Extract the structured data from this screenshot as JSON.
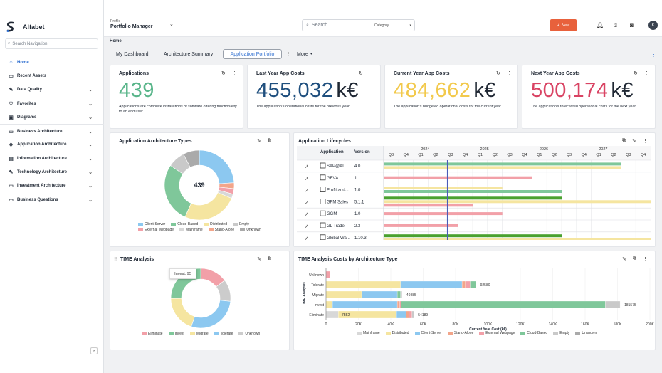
{
  "app": {
    "logo_text": "Alfabet"
  },
  "sidebar": {
    "search_placeholder": "Search Navigation",
    "items": [
      {
        "label": "Home",
        "icon": "home-icon",
        "glyph": "⌂",
        "active": true,
        "expandable": false
      },
      {
        "label": "Recent Assets",
        "icon": "recent-icon",
        "glyph": "▭",
        "active": false,
        "expandable": false
      },
      {
        "label": "Data Quality",
        "icon": "data-quality-icon",
        "glyph": "✎",
        "active": false,
        "expandable": true
      },
      {
        "label": "Favorites",
        "icon": "heart-icon",
        "glyph": "♡",
        "active": false,
        "expandable": true
      },
      {
        "label": "Diagrams",
        "icon": "diagram-icon",
        "glyph": "▣",
        "active": false,
        "expandable": true
      },
      {
        "label": "Business Architecture",
        "icon": "business-icon",
        "glyph": "▭",
        "active": false,
        "expandable": true
      },
      {
        "label": "Application Architecture",
        "icon": "application-icon",
        "glyph": "◈",
        "active": false,
        "expandable": true
      },
      {
        "label": "Information Architecture",
        "icon": "information-icon",
        "glyph": "▤",
        "active": false,
        "expandable": true
      },
      {
        "label": "Technology Architecture",
        "icon": "technology-icon",
        "glyph": "✎",
        "active": false,
        "expandable": true
      },
      {
        "label": "Investment Architecture",
        "icon": "investment-icon",
        "glyph": "▭",
        "active": false,
        "expandable": true
      },
      {
        "label": "Business Questions",
        "icon": "questions-icon",
        "glyph": "▭",
        "active": false,
        "expandable": true
      }
    ]
  },
  "header": {
    "profile_caption": "Profile",
    "profile_name": "Portfolio Manager",
    "search_placeholder": "Search",
    "search_category": "Category",
    "new_label": "New",
    "avatar_initial": "K"
  },
  "breadcrumb": "Home",
  "tabs": [
    {
      "label": "My Dashboard",
      "active": false
    },
    {
      "label": "Architecture Summary",
      "active": false
    },
    {
      "label": "Application Portfolio",
      "active": true
    },
    {
      "label": "More",
      "active": false
    }
  ],
  "kpis": [
    {
      "title": "Applications",
      "value": "439",
      "unit": "",
      "color": "#59b58a",
      "desc": "Applications are complete installations of software offering functionality to an end user."
    },
    {
      "title": "Last Year App Costs",
      "value": "455,032",
      "unit": "k€",
      "color": "#1f4f7e",
      "desc": "The application's operational costs for the previous year."
    },
    {
      "title": "Current Year App Costs",
      "value": "484,662",
      "unit": "k€",
      "color": "#f2c94c",
      "desc": "The application's budgeted operational costs for the current year."
    },
    {
      "title": "Next Year App Costs",
      "value": "500,174",
      "unit": "k€",
      "color": "#d94363",
      "desc": "The application's forecasted operational costs for the next year."
    }
  ],
  "arch_types": {
    "title": "Application Architecture Types",
    "center_label": "439",
    "legend": [
      {
        "label": "Client-Server",
        "color": "#8cc8f0"
      },
      {
        "label": "Cloud-Based",
        "color": "#7fc79a"
      },
      {
        "label": "Distributed",
        "color": "#f5e5a0"
      },
      {
        "label": "Empty",
        "color": "#c9c9c9"
      },
      {
        "label": "External Webpage",
        "color": "#f2a0a8"
      },
      {
        "label": "Mainframe",
        "color": "#d8d8d8"
      },
      {
        "label": "Stand-Alone",
        "color": "#f2a58a"
      },
      {
        "label": "Unknown",
        "color": "#aaaaaa"
      }
    ]
  },
  "lifecycles": {
    "title": "Application Lifecycles",
    "col_application": "Application",
    "col_version": "Version",
    "years": [
      "2024",
      "2025",
      "2026",
      "2027"
    ],
    "quarters": [
      "Q3",
      "Q4",
      "Q1",
      "Q2",
      "Q3",
      "Q4",
      "Q1",
      "Q2",
      "Q3",
      "Q4",
      "Q1",
      "Q2",
      "Q3",
      "Q4",
      "Q1",
      "Q2",
      "Q3",
      "Q4"
    ],
    "rows": [
      {
        "name": "SAP@AI",
        "version": "4.0"
      },
      {
        "name": "GEVA",
        "version": "1"
      },
      {
        "name": "Profit and...",
        "version": "1.0"
      },
      {
        "name": "GFM Sales",
        "version": "5.1.1"
      },
      {
        "name": "GGM",
        "version": "1.0"
      },
      {
        "name": "GL Trade",
        "version": "2.3"
      },
      {
        "name": "Global Wa...",
        "version": "1.10.3"
      }
    ]
  },
  "time_analysis": {
    "title": "TIME Analysis",
    "tooltip": "Invest, 95",
    "legend": [
      {
        "label": "Eliminate",
        "color": "#f2a0a8"
      },
      {
        "label": "Invest",
        "color": "#7fc79a"
      },
      {
        "label": "Migrate",
        "color": "#f5e5a0"
      },
      {
        "label": "Tolerate",
        "color": "#8cc8f0"
      },
      {
        "label": "Unknown",
        "color": "#cccccc"
      }
    ]
  },
  "time_costs": {
    "title": "TIME Analysis Costs by Architecture Type",
    "ylabel": "TIME Analysis",
    "xlabel": "Current Year Cost (k€)",
    "legend": [
      {
        "label": "Mainframe",
        "color": "#d8d8d8"
      },
      {
        "label": "Distributed",
        "color": "#f5e5a0"
      },
      {
        "label": "Client-Server",
        "color": "#8cc8f0"
      },
      {
        "label": "Stand-Alone",
        "color": "#f2a58a"
      },
      {
        "label": "External Webpage",
        "color": "#f2a0a8"
      },
      {
        "label": "Cloud-Based",
        "color": "#7fc79a"
      },
      {
        "label": "Empty",
        "color": "#c9c9c9"
      },
      {
        "label": "Unknown",
        "color": "#aaaaaa"
      }
    ]
  },
  "chart_data": [
    {
      "type": "pie",
      "title": "Application Architecture Types",
      "center_label": "439",
      "slices": [
        {
          "label": "Client-Server",
          "value": 105,
          "color": "#8cc8f0"
        },
        {
          "label": "Stand-Alone",
          "value": 12,
          "color": "#f2a58a"
        },
        {
          "label": "External Webpage",
          "value": 11,
          "color": "#f2a0a8"
        },
        {
          "label": "Mainframe",
          "value": 9,
          "color": "#d8d8d8"
        },
        {
          "label": "Distributed",
          "value": 112,
          "color": "#f5e5a0"
        },
        {
          "label": "Cloud-Based",
          "value": 122,
          "color": "#7fc79a"
        },
        {
          "label": "Empty",
          "value": 35,
          "color": "#c9c9c9"
        },
        {
          "label": "Unknown",
          "value": 33,
          "color": "#aaaaaa"
        }
      ]
    },
    {
      "type": "pie",
      "title": "TIME Analysis",
      "slices": [
        {
          "label": "Eliminate",
          "value": 56,
          "color": "#f2a0a8"
        },
        {
          "label": "Unknown",
          "value": 45,
          "color": "#cccccc"
        },
        {
          "label": "Tolerate",
          "value": 108,
          "color": "#8cc8f0"
        },
        {
          "label": "Migrate",
          "value": 75,
          "color": "#f5e5a0"
        },
        {
          "label": "Invest",
          "value": 95,
          "color": "#7fc79a"
        }
      ]
    },
    {
      "type": "bar",
      "orientation": "horizontal",
      "stacked": true,
      "title": "TIME Analysis Costs by Architecture Type",
      "xlabel": "Current Year Cost (k€)",
      "ylabel": "TIME Analysis",
      "xlim": [
        0,
        200000
      ],
      "xticks": [
        "0",
        "20K",
        "40K",
        "60K",
        "80K",
        "100K",
        "120K",
        "140K",
        "160K",
        "180K",
        "200K"
      ],
      "categories": [
        "Unknown",
        "Tolerate",
        "Migrate",
        "Invest",
        "Eliminate"
      ],
      "totals": [
        "",
        "92580",
        "46985",
        "181575",
        "54189"
      ],
      "inline_labels": [
        "",
        "",
        "",
        "",
        "7552"
      ],
      "series": [
        {
          "name": "Mainframe",
          "color": "#d8d8d8",
          "values": [
            0,
            0,
            0,
            0,
            7552
          ]
        },
        {
          "name": "Distributed",
          "color": "#f5e5a0",
          "values": [
            0,
            46000,
            22000,
            4000,
            36000
          ]
        },
        {
          "name": "Client-Server",
          "color": "#8cc8f0",
          "values": [
            0,
            38000,
            22000,
            40000,
            6000
          ]
        },
        {
          "name": "Stand-Alone",
          "color": "#f2a58a",
          "values": [
            0,
            2000,
            0,
            1500,
            1500
          ]
        },
        {
          "name": "External Webpage",
          "color": "#f2a0a8",
          "values": [
            2500,
            3000,
            0,
            1000,
            2000
          ]
        },
        {
          "name": "Cloud-Based",
          "color": "#7fc79a",
          "values": [
            0,
            3580,
            1985,
            126000,
            0
          ]
        },
        {
          "name": "Empty",
          "color": "#c9c9c9",
          "values": [
            0,
            0,
            1000,
            9075,
            1137
          ]
        },
        {
          "name": "Unknown",
          "color": "#aaaaaa",
          "values": [
            0,
            0,
            0,
            0,
            0
          ]
        }
      ]
    },
    {
      "type": "gantt",
      "title": "Application Lifecycles",
      "axis_start": "2023-Q3",
      "axis_quarters": 18,
      "current_marker": "2024-Q2",
      "rows": [
        {
          "name": "SAP@AI",
          "bars": [
            {
              "color": "#7fc79a",
              "start": 0,
              "end": 16
            },
            {
              "color": "#f5e5a0",
              "start": 0,
              "end": 16
            }
          ]
        },
        {
          "name": "GEVA",
          "bars": [
            {
              "color": "#f2a0a8",
              "start": 0,
              "end": 10
            }
          ]
        },
        {
          "name": "Profit and...",
          "bars": [
            {
              "color": "#f5e5a0",
              "start": 0,
              "end": 8
            },
            {
              "color": "#7fc79a",
              "start": 0,
              "end": 12
            }
          ]
        },
        {
          "name": "GFM Sales",
          "bars": [
            {
              "color": "#4aa12f",
              "start": 0,
              "end": 12
            },
            {
              "color": "#f5e5a0",
              "start": 0,
              "end": 18
            },
            {
              "color": "#f2a0a8",
              "start": 0,
              "end": 6
            }
          ]
        },
        {
          "name": "GGM",
          "bars": [
            {
              "color": "#f2a0a8",
              "start": 0,
              "end": 8
            }
          ]
        },
        {
          "name": "GL Trade",
          "bars": [
            {
              "color": "#f2a0a8",
              "start": 0,
              "end": 5
            }
          ]
        },
        {
          "name": "Global Wa...",
          "bars": [
            {
              "color": "#4aa12f",
              "start": 0,
              "end": 12
            },
            {
              "color": "#f5e5a0",
              "start": 0,
              "end": 18
            }
          ]
        }
      ]
    }
  ]
}
